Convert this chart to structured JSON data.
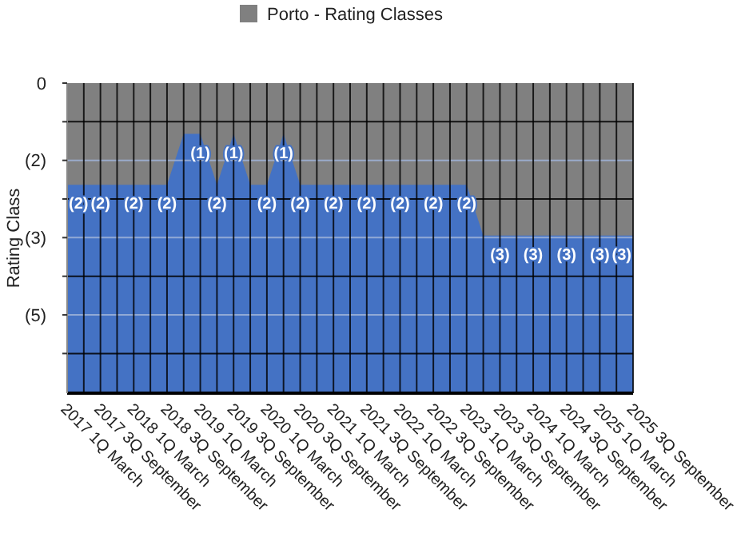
{
  "chart_data": {
    "type": "area",
    "ylabel": "Rating Class",
    "legend": "top",
    "grid": true,
    "categories": [
      "2017 1Q March",
      null,
      "2017 3Q September",
      null,
      "2018 1Q March",
      null,
      "2018 3Q September",
      null,
      "2019 1Q March",
      null,
      "2019 3Q September",
      null,
      "2020 1Q March",
      null,
      "2020 3Q September",
      null,
      "2021 1Q March",
      null,
      "2021 3Q September",
      null,
      "2022 1Q March",
      null,
      "2022 3Q September",
      null,
      "2023 1Q March",
      null,
      "2023 3Q September",
      null,
      "2024 1Q March",
      null,
      "2024 3Q September",
      null,
      "2025 1Q March",
      null,
      "2025 3Q September"
    ],
    "ylim": [
      -6.1,
      0
    ],
    "yticks": [
      {
        "value": 0,
        "label": "0"
      },
      {
        "value": -0.76,
        "label": null
      },
      {
        "value": -1.52,
        "label": "(2)"
      },
      {
        "value": -2.28,
        "label": null
      },
      {
        "value": -3.04,
        "label": "(3)"
      },
      {
        "value": -3.8,
        "label": null
      },
      {
        "value": -4.56,
        "label": "(5)"
      },
      {
        "value": -5.32,
        "label": null
      }
    ],
    "series": [
      {
        "name": "Porto - Rating Classes",
        "color": "#808080",
        "values": [
          -2,
          -2,
          -2,
          -2,
          -2,
          -2,
          -2,
          -1,
          -1,
          -2,
          -1,
          -2,
          -2,
          -1,
          -2,
          -2,
          -2,
          -2,
          -2,
          -2,
          -2,
          -2,
          -2,
          -2,
          -2,
          -3,
          -3,
          -3,
          -3,
          -3,
          -3,
          -3,
          -3,
          -3,
          -3
        ],
        "value_labels": [
          "(2)",
          null,
          "(2)",
          null,
          "(2)",
          null,
          "(2)",
          null,
          "(1)",
          "(2)",
          "(1)",
          null,
          "(2)",
          "(1)",
          "(2)",
          null,
          "(2)",
          null,
          "(2)",
          null,
          "(2)",
          null,
          "(2)",
          null,
          "(2)",
          null,
          "(3)",
          null,
          "(3)",
          null,
          "(3)",
          null,
          "(3)",
          null,
          "(3)"
        ]
      }
    ]
  }
}
